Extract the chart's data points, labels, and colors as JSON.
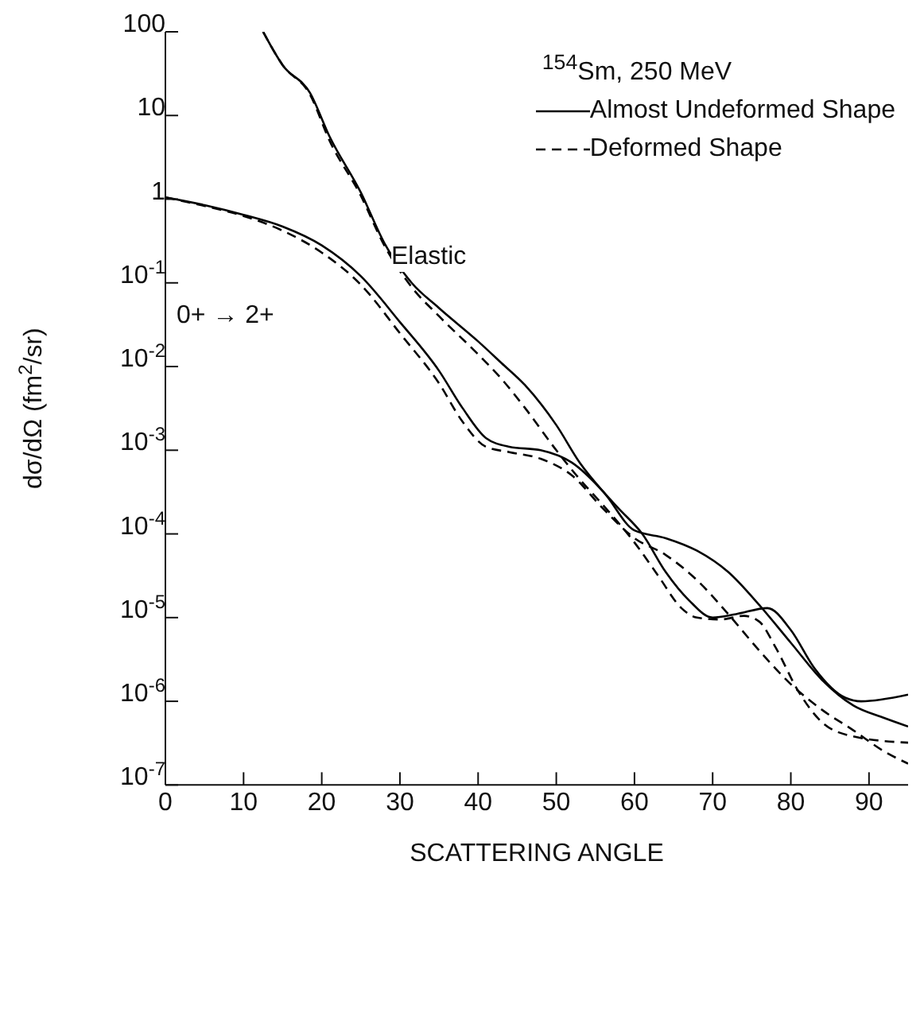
{
  "chart_data": {
    "type": "line",
    "legend_title": "$^{154}$Sm, 250 MeV",
    "xlabel": "SCATTERING ANGLE",
    "ylabel": "dσ/dΩ  (fm$^{2}$/sr)",
    "log": "y",
    "legend": "top right",
    "grid": false,
    "marker": "none",
    "xlim": [
      0,
      95
    ],
    "ylim": [
      1e-07,
      100
    ],
    "xticks": [
      0,
      10,
      20,
      30,
      40,
      50,
      60,
      70,
      80,
      90
    ],
    "yticks": [
      100,
      10,
      1,
      {
        "value": 0.1,
        "label": "10$^{-1}$"
      },
      {
        "value": 0.01,
        "label": "10$^{-2}$"
      },
      {
        "value": 0.001,
        "label": "10$^{-3}$"
      },
      {
        "value": 0.0001,
        "label": "10$^{-4}$"
      },
      {
        "value": 1e-05,
        "label": "10$^{-5}$"
      },
      {
        "value": 1e-06,
        "label": "10$^{-6}$"
      },
      {
        "value": 1e-07,
        "label": "10$^{-7}$"
      }
    ],
    "annotations": [
      "Elastic",
      "0+ → 2+"
    ],
    "series": [
      {
        "name": "Almost Undeformed Shape",
        "color": "#000000",
        "line_style": "solid",
        "x": [
          12.5,
          15,
          18.5,
          21,
          25,
          28,
          31.5,
          35,
          40,
          43,
          46,
          50,
          53,
          56,
          58,
          61,
          64,
          67,
          70,
          73,
          77,
          80,
          83,
          87,
          89,
          95
        ],
        "values": [
          100,
          40,
          18.6,
          5.6,
          1.2,
          0.3,
          0.1,
          0.05,
          0.02,
          0.011,
          0.006,
          0.002,
          0.00071,
          0.00032,
          0.0002,
          0.0001,
          3.5e-05,
          1.6e-05,
          1e-05,
          1.1e-05,
          1.3e-05,
          7.1e-06,
          2.5e-06,
          1.1e-06,
          1e-06,
          1.2e-06
        ]
      },
      {
        "name": "Deformed Shape",
        "color": "#000000",
        "line_style": "dashed",
        "x": [
          12.5,
          15,
          18.5,
          21,
          25,
          28,
          31.5,
          35,
          40,
          43,
          46,
          50,
          53,
          56,
          60,
          63,
          66,
          68,
          71,
          74,
          76,
          78,
          81,
          84,
          88,
          95
        ],
        "values": [
          100,
          40,
          17.8,
          5,
          1.1,
          0.28,
          0.089,
          0.04,
          0.014,
          0.0071,
          0.0032,
          0.001,
          0.00045,
          0.00022,
          7.9e-05,
          3.2e-05,
          1.3e-05,
          1e-05,
          9.5e-06,
          1.05e-05,
          8.9e-06,
          4.5e-06,
          1.3e-06,
          5.6e-07,
          3.8e-07,
          3.2e-07
        ]
      },
      {
        "color": "#000000",
        "line_style": "solid",
        "x": [
          0,
          5,
          10,
          15,
          20,
          25,
          30,
          35,
          38,
          41,
          44,
          48,
          52,
          56,
          60,
          64,
          68,
          72,
          76,
          80,
          84,
          88,
          92,
          95
        ],
        "values": [
          1.05,
          0.85,
          0.65,
          0.47,
          0.28,
          0.12,
          0.034,
          0.0089,
          0.0032,
          0.0014,
          0.0011,
          0.001,
          0.00071,
          0.00032,
          0.00011,
          8.9e-05,
          6.3e-05,
          3.5e-05,
          1.4e-05,
          5e-06,
          1.8e-06,
          8.9e-07,
          6.3e-07,
          5e-07
        ]
      },
      {
        "color": "#000000",
        "line_style": "dashed",
        "x": [
          0,
          5,
          10,
          15,
          20,
          25,
          30,
          35,
          38,
          41,
          44,
          48,
          52,
          56,
          60,
          64,
          68,
          72,
          76,
          80,
          84,
          88,
          92,
          95
        ],
        "values": [
          1.05,
          0.83,
          0.63,
          0.42,
          0.23,
          0.095,
          0.025,
          0.0063,
          0.0022,
          0.0011,
          0.00095,
          0.00079,
          0.0005,
          0.0002,
          8.9e-05,
          5.6e-05,
          2.8e-05,
          1.1e-05,
          4e-06,
          1.6e-06,
          7.9e-07,
          4.5e-07,
          2.5e-07,
          1.8e-07
        ]
      }
    ]
  }
}
